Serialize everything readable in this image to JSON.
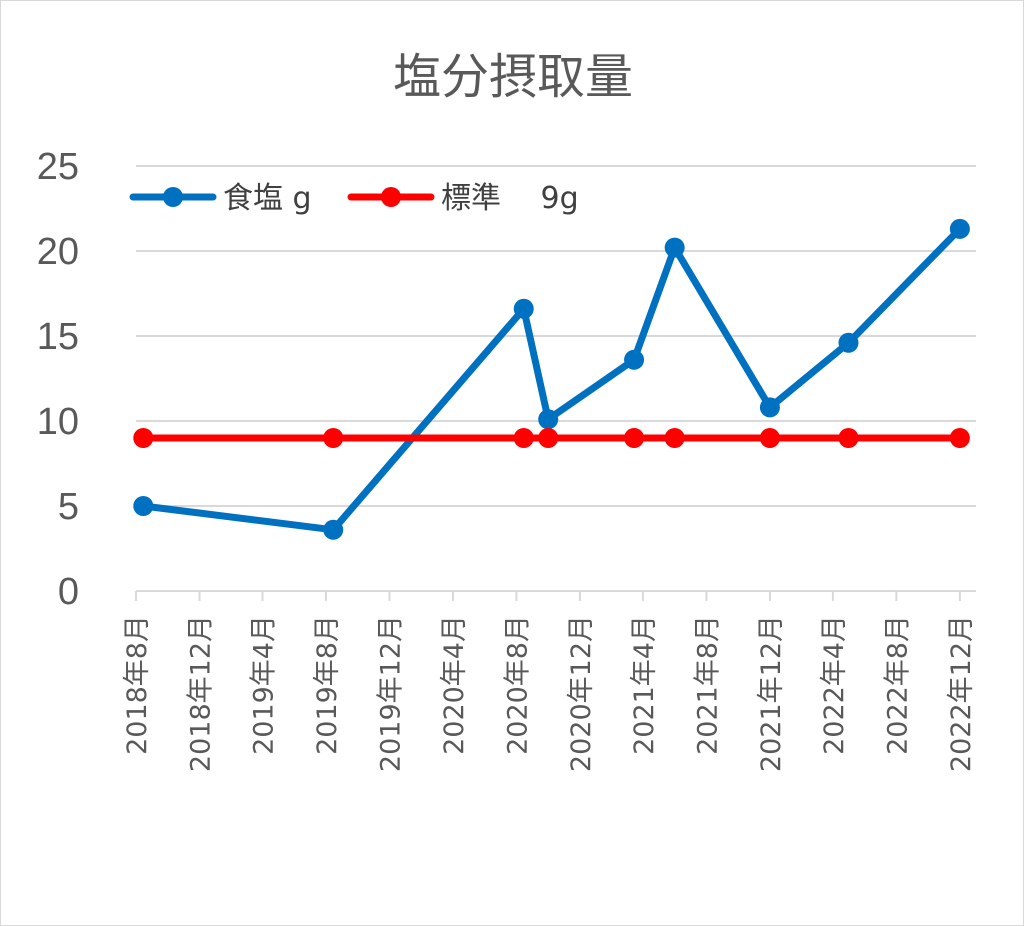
{
  "chart_data": {
    "type": "line",
    "title": "塩分摂取量",
    "xlabel": "",
    "ylabel": "",
    "ylim": [
      0,
      25
    ],
    "yticks": [
      0,
      5,
      10,
      15,
      20,
      25
    ],
    "xlim": [
      "2018-08-01",
      "2023-01-01"
    ],
    "xtick_labels": [
      "2018年8月",
      "2018年12月",
      "2019年4月",
      "2019年8月",
      "2019年12月",
      "2020年4月",
      "2020年8月",
      "2020年12月",
      "2021年4月",
      "2021年8月",
      "2021年12月",
      "2022年4月",
      "2022年8月",
      "2022年12月"
    ],
    "x": [
      "2018-08-15",
      "2019-08-15",
      "2020-08-15",
      "2020-10-01",
      "2021-03-15",
      "2021-06-01",
      "2021-12-01",
      "2022-05-01",
      "2022-12-01"
    ],
    "series": [
      {
        "name": "食塩 g",
        "color": "#0070C0",
        "values": [
          5.0,
          3.6,
          16.6,
          10.1,
          13.6,
          20.2,
          10.8,
          14.6,
          21.3
        ]
      },
      {
        "name": "標準　 9g",
        "color": "#FF0000",
        "values": [
          9,
          9,
          9,
          9,
          9,
          9,
          9,
          9,
          9
        ]
      }
    ],
    "grid": true,
    "legend_position": "top-left"
  }
}
